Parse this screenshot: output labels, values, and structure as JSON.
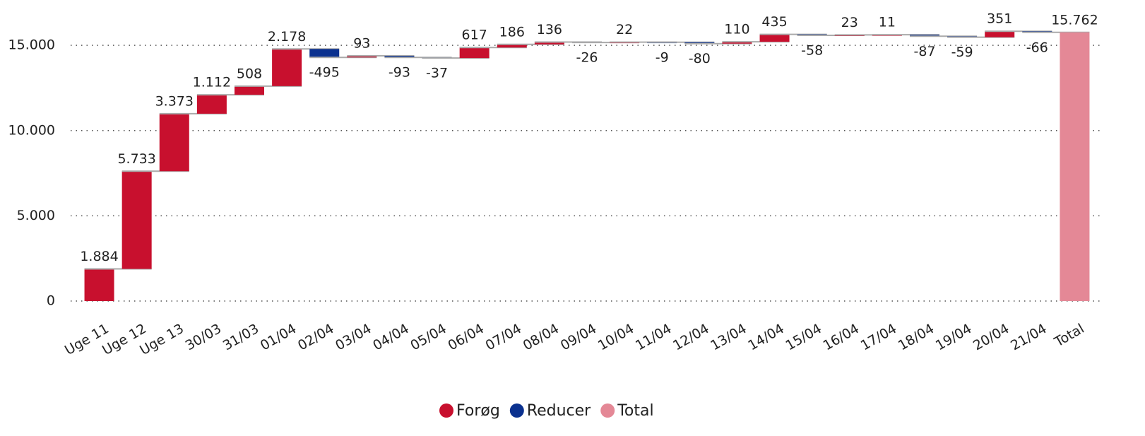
{
  "chart_data": {
    "type": "waterfall",
    "categories": [
      "Uge 11",
      "Uge 12",
      "Uge 13",
      "30/03",
      "31/03",
      "01/04",
      "02/04",
      "03/04",
      "04/04",
      "05/04",
      "06/04",
      "07/04",
      "08/04",
      "09/04",
      "10/04",
      "11/04",
      "12/04",
      "13/04",
      "14/04",
      "15/04",
      "16/04",
      "17/04",
      "18/04",
      "19/04",
      "20/04",
      "21/04",
      "Total"
    ],
    "values": [
      1884,
      5733,
      3373,
      1112,
      508,
      2178,
      -495,
      93,
      -93,
      -37,
      617,
      186,
      136,
      -26,
      22,
      -9,
      -80,
      110,
      435,
      -58,
      23,
      11,
      -87,
      -59,
      351,
      -66,
      15762
    ],
    "value_labels": [
      "1.884",
      "5.733",
      "3.373",
      "1.112",
      "508",
      "2.178",
      "-495",
      "93",
      "-93",
      "-37",
      "617",
      "186",
      "136",
      "-26",
      "22",
      "-9",
      "-80",
      "110",
      "435",
      "-58",
      "23",
      "11",
      "-87",
      "-59",
      "351",
      "-66",
      "15.762"
    ],
    "legend": [
      {
        "name": "Forøg",
        "color": "#c8102e"
      },
      {
        "name": "Reducer",
        "color": "#0b318f"
      },
      {
        "name": "Total",
        "color": "#e48896"
      }
    ],
    "ylim": [
      0,
      16500
    ],
    "yticks": [
      0,
      {
        "value": 5000,
        "label": "5.000"
      },
      {
        "value": 10000,
        "label": "10.000"
      },
      {
        "value": 15000,
        "label": "15.000"
      }
    ],
    "grid": true
  }
}
